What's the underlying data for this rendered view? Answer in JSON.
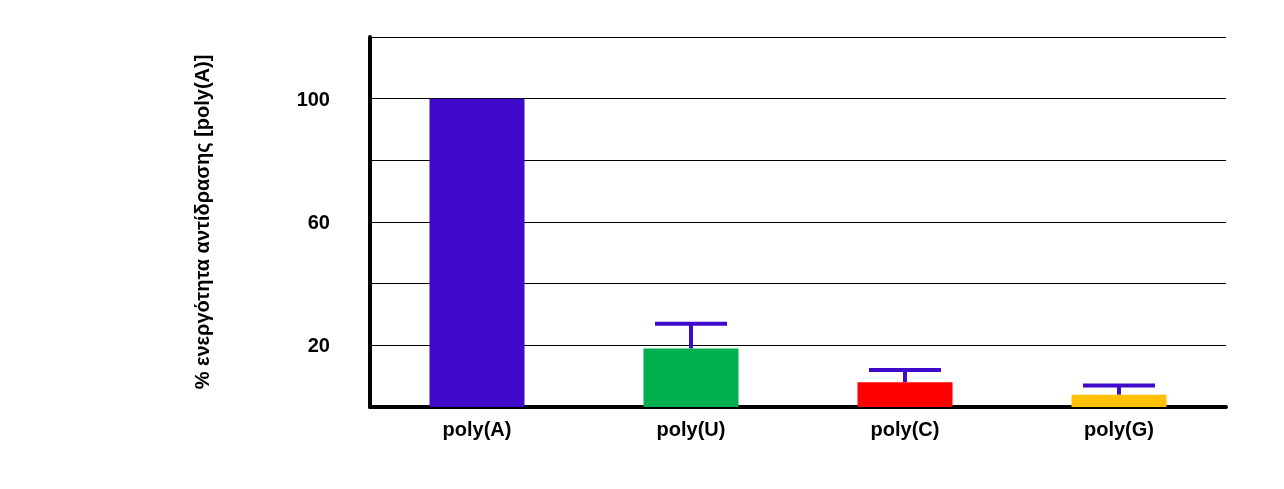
{
  "chart_data": {
    "type": "bar",
    "ylabel": "% ενεργότητα αντίδρασης [poly(A)]",
    "categories": [
      "poly(A)",
      "poly(U)",
      "poly(C)",
      "poly(G)"
    ],
    "values": [
      100,
      19,
      8,
      4
    ],
    "colors": [
      "#3f0acb",
      "#00b050",
      "#ff0000",
      "#ffc000"
    ],
    "errors": [
      null,
      [
        19,
        27
      ],
      [
        8,
        12
      ],
      [
        4,
        7
      ]
    ],
    "ylim": [
      0,
      120
    ],
    "yticks": [
      {
        "value": 0,
        "label": null
      },
      20,
      {
        "value": 40,
        "label": null
      },
      60,
      {
        "value": 80,
        "label": null
      },
      100,
      {
        "value": 120,
        "label": null
      }
    ],
    "grid": "y"
  }
}
